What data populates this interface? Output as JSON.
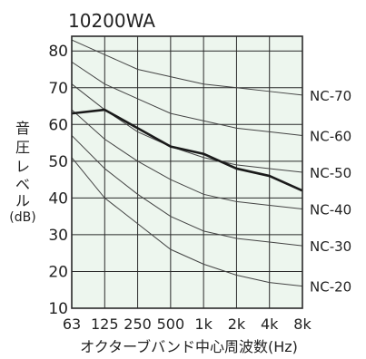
{
  "chart_data": {
    "type": "line",
    "title": "10200WA",
    "ylabel_lines": [
      "音",
      "圧",
      "レ",
      "ベ",
      "ル",
      "(dB)"
    ],
    "xlabel": "オクターブバンド中心周波数(Hz)",
    "categories": [
      "63",
      "125",
      "250",
      "500",
      "1k",
      "2k",
      "4k",
      "8k"
    ],
    "y_ticks": [
      10,
      20,
      30,
      40,
      50,
      60,
      70,
      80
    ],
    "ylim": [
      10,
      84
    ],
    "grid": true,
    "colors": {
      "plot_bg": "#edf6ee",
      "grid": "#2a2a2a",
      "nc_line": "#444444",
      "series": "#1a1a1a"
    },
    "nc_curves": [
      {
        "name": "NC-70",
        "values": [
          83,
          79,
          75,
          73,
          71,
          70,
          69,
          68
        ]
      },
      {
        "name": "NC-60",
        "values": [
          77,
          71,
          67,
          63,
          61,
          59,
          58,
          57
        ]
      },
      {
        "name": "NC-50",
        "values": [
          71,
          64,
          58,
          54,
          51,
          49,
          48,
          47
        ]
      },
      {
        "name": "NC-40",
        "values": [
          64,
          56,
          50,
          45,
          41,
          39,
          38,
          37
        ]
      },
      {
        "name": "NC-30",
        "values": [
          57,
          48,
          41,
          35,
          31,
          29,
          28,
          27
        ]
      },
      {
        "name": "NC-20",
        "values": [
          51,
          40,
          33,
          26,
          22,
          19,
          17,
          16
        ]
      }
    ],
    "series": [
      {
        "values": [
          63,
          64,
          59,
          54,
          52,
          48,
          46,
          42
        ]
      }
    ]
  }
}
